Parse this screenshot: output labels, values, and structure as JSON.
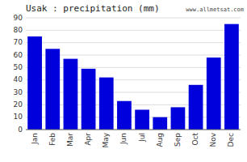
{
  "chart_data": {
    "type": "bar",
    "title": "Usak : precipitation (mm)",
    "categories": [
      "Jan",
      "Feb",
      "Mar",
      "Apr",
      "May",
      "Jun",
      "Jul",
      "Aug",
      "Sep",
      "Oct",
      "Nov",
      "Dec"
    ],
    "values": [
      75,
      65,
      57,
      49,
      42,
      23,
      16,
      10,
      18,
      36,
      58,
      85
    ],
    "color": "#0000dd",
    "ylim": [
      0,
      90
    ],
    "yticks": [
      0,
      10,
      20,
      30,
      40,
      50,
      60,
      70,
      80,
      90
    ],
    "grid": true,
    "annotations": [
      "www.allmetsat.com"
    ]
  }
}
